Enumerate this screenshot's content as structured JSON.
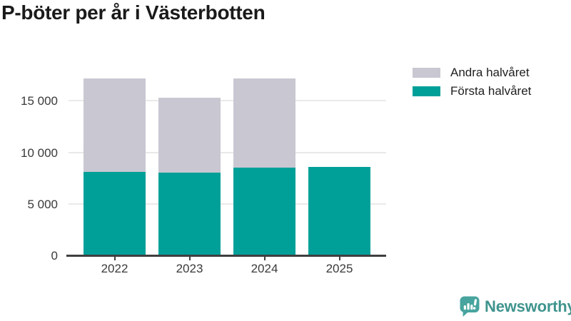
{
  "title": "P-böter per år i Västerbotten",
  "chart_data": {
    "type": "bar",
    "stacked": true,
    "title": "P-böter per år i Västerbotten",
    "xlabel": "",
    "ylabel": "",
    "categories": [
      "2022",
      "2023",
      "2024",
      "2025"
    ],
    "series": [
      {
        "name": "Första halvåret",
        "color": "#00a099",
        "values": [
          8100,
          8000,
          8500,
          8600
        ]
      },
      {
        "name": "Andra halvåret",
        "color": "#c9c7d1",
        "values": [
          9100,
          7300,
          8700,
          0
        ]
      }
    ],
    "totals": [
      17200,
      15300,
      17200,
      8600
    ],
    "yticks": [
      0,
      5000,
      10000,
      15000
    ],
    "ytick_labels": [
      "0",
      "5 000",
      "10 000",
      "15 000"
    ],
    "ylim": [
      0,
      18200
    ],
    "grid": true,
    "legend_position": "top-right"
  },
  "legend": {
    "items": [
      {
        "label": "Andra halvåret",
        "color": "#c9c7d1"
      },
      {
        "label": "Första halvåret",
        "color": "#00a099"
      }
    ]
  },
  "footer": {
    "brand": "Newsworthy",
    "logo_icon": "newsworthy-speech-bubble-bar-chart-icon"
  },
  "colors": {
    "first_half": "#00a099",
    "second_half": "#c9c7d1",
    "brand_teal": "#47a49e",
    "axis": "#3f3f3f",
    "gridline": "#e9e9e9",
    "text_dark": "#1a1a1a"
  }
}
